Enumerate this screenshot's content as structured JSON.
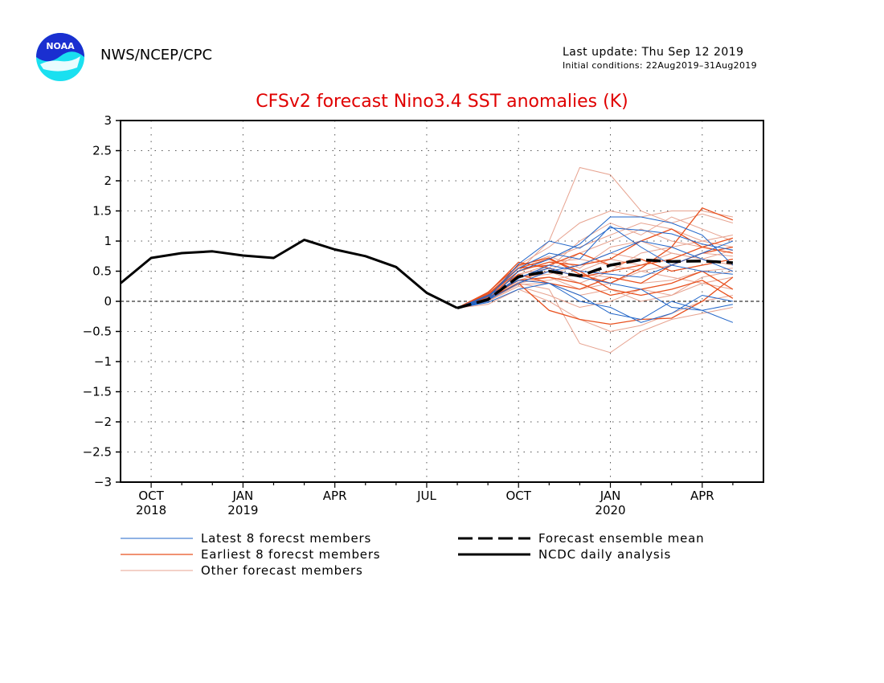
{
  "header": {
    "org": "NWS/NCEP/CPC",
    "last_update": "Last update: Thu Sep 12 2019",
    "initial_conditions": "Initial conditions: 22Aug2019–31Aug2019",
    "logo_text": "NOAA"
  },
  "chart_data": {
    "type": "line",
    "title": "CFSv2 forecast Nino3.4 SST anomalies (K)",
    "xlabel": "",
    "ylabel": "",
    "ylim": [
      -3,
      3
    ],
    "y_ticks": [
      "3",
      "2.5",
      "2",
      "1.5",
      "1",
      "0.5",
      "0",
      "−0.5",
      "−1",
      "−1.5",
      "−2",
      "−2.5",
      "−3"
    ],
    "x_ticks": [
      {
        "month": 0,
        "label": "OCT",
        "year": "2018"
      },
      {
        "month": 3,
        "label": "JAN",
        "year": "2019"
      },
      {
        "month": 6,
        "label": "APR",
        "year": ""
      },
      {
        "month": 9,
        "label": "JUL",
        "year": ""
      },
      {
        "month": 12,
        "label": "OCT",
        "year": ""
      },
      {
        "month": 15,
        "label": "JAN",
        "year": "2020"
      },
      {
        "month": 18,
        "label": "APR",
        "year": ""
      }
    ],
    "x_range_months_from_oct2018": [
      -1,
      20
    ],
    "grid": true,
    "zero_line": true,
    "colors": {
      "latest": "#1f64c8",
      "earliest": "#e8501e",
      "other": "#e7a390",
      "mean": "#000000",
      "analysis": "#000000"
    },
    "analysis": {
      "name": "NCDC daily analysis",
      "x": [
        -1,
        0,
        1,
        2,
        3,
        4,
        5,
        6,
        7,
        8,
        9,
        10
      ],
      "y": [
        0.3,
        0.72,
        0.8,
        0.83,
        0.76,
        0.72,
        1.02,
        0.86,
        0.75,
        0.57,
        0.14,
        -0.11
      ]
    },
    "ensemble_mean": {
      "name": "Forecast ensemble mean",
      "x": [
        10,
        11,
        12,
        13,
        14,
        15,
        16,
        17,
        18,
        19
      ],
      "y": [
        -0.11,
        0.03,
        0.41,
        0.5,
        0.42,
        0.6,
        0.69,
        0.66,
        0.67,
        0.64
      ]
    },
    "forecast_x": [
      10,
      11,
      12,
      13,
      14,
      15,
      16,
      17,
      18,
      19
    ],
    "latest_members": {
      "name": "Latest 8 forecst members",
      "y": [
        [
          -0.11,
          0.05,
          0.62,
          1.0,
          0.88,
          1.22,
          1.18,
          1.12,
          0.95,
          0.85
        ],
        [
          -0.11,
          0.0,
          0.5,
          0.7,
          0.95,
          1.4,
          1.4,
          1.3,
          1.1,
          0.6
        ],
        [
          -0.11,
          0.1,
          0.35,
          0.3,
          0.1,
          -0.2,
          -0.3,
          0.0,
          -0.15,
          -0.35
        ],
        [
          -0.11,
          0.05,
          0.4,
          0.55,
          0.4,
          0.3,
          0.2,
          -0.1,
          -0.15,
          -0.05
        ],
        [
          -0.11,
          0.02,
          0.3,
          0.5,
          0.6,
          0.8,
          1.0,
          0.9,
          0.7,
          0.5
        ],
        [
          -0.11,
          -0.02,
          0.2,
          0.3,
          0.0,
          -0.1,
          -0.35,
          -0.2,
          0.1,
          0.0
        ],
        [
          -0.11,
          0.08,
          0.55,
          0.8,
          0.7,
          1.25,
          0.9,
          0.6,
          0.8,
          1.0
        ],
        [
          -0.11,
          0.03,
          0.38,
          0.6,
          0.5,
          0.45,
          0.4,
          0.6,
          0.5,
          0.45
        ]
      ]
    },
    "earliest_members": {
      "name": "Earliest 8 forecst members",
      "y": [
        [
          -0.11,
          0.15,
          0.6,
          0.72,
          0.45,
          0.3,
          0.55,
          0.9,
          1.55,
          1.35
        ],
        [
          -0.11,
          0.1,
          0.55,
          0.7,
          0.5,
          0.2,
          0.1,
          0.2,
          0.35,
          0.05
        ],
        [
          -0.11,
          0.05,
          0.3,
          -0.15,
          -0.3,
          -0.38,
          -0.3,
          -0.28,
          0.0,
          0.4
        ],
        [
          -0.11,
          0.1,
          0.5,
          0.65,
          0.6,
          0.7,
          1.0,
          1.2,
          0.9,
          1.05
        ],
        [
          -0.11,
          0.08,
          0.45,
          0.3,
          0.2,
          0.4,
          0.3,
          0.6,
          0.8,
          0.9
        ],
        [
          -0.11,
          0.12,
          0.55,
          0.6,
          0.8,
          0.6,
          0.7,
          0.5,
          0.6,
          0.7
        ],
        [
          -0.11,
          0.06,
          0.35,
          0.4,
          0.3,
          0.1,
          0.2,
          0.3,
          0.5,
          0.2
        ],
        [
          -0.11,
          0.14,
          0.65,
          0.55,
          0.4,
          0.5,
          0.6,
          0.7,
          0.9,
          0.8
        ]
      ]
    },
    "other_members": {
      "name": "Other forecast members",
      "y": [
        [
          -0.11,
          0.05,
          0.5,
          1.0,
          2.22,
          2.1,
          1.5,
          1.3,
          1.45,
          1.3
        ],
        [
          -0.11,
          0.0,
          0.3,
          0.2,
          -0.7,
          -0.85,
          -0.5,
          -0.3,
          -0.2,
          -0.1
        ],
        [
          -0.11,
          0.1,
          0.6,
          0.9,
          1.3,
          1.5,
          1.4,
          1.5,
          1.5,
          1.4
        ],
        [
          -0.11,
          0.03,
          0.4,
          0.5,
          0.8,
          1.0,
          1.2,
          1.0,
          0.9,
          0.8
        ],
        [
          -0.11,
          -0.05,
          0.2,
          0.0,
          -0.3,
          -0.5,
          -0.4,
          -0.2,
          0.0,
          0.1
        ],
        [
          -0.11,
          0.08,
          0.45,
          0.6,
          0.5,
          0.7,
          0.6,
          0.8,
          0.7,
          0.6
        ],
        [
          -0.11,
          0.02,
          0.3,
          0.4,
          0.2,
          0.3,
          0.5,
          0.4,
          0.3,
          0.2
        ],
        [
          -0.11,
          0.12,
          0.55,
          0.7,
          0.9,
          1.1,
          1.3,
          1.2,
          1.0,
          1.1
        ],
        [
          -0.11,
          0.0,
          0.25,
          0.1,
          -0.1,
          0.0,
          0.2,
          0.1,
          0.4,
          0.5
        ],
        [
          -0.11,
          0.06,
          0.4,
          0.45,
          0.6,
          0.8,
          0.7,
          0.5,
          0.6,
          0.7
        ],
        [
          -0.11,
          0.04,
          0.35,
          0.5,
          0.3,
          0.5,
          0.8,
          0.9,
          1.0,
          0.9
        ],
        [
          -0.11,
          0.09,
          0.5,
          0.65,
          0.7,
          0.6,
          0.5,
          0.6,
          0.8,
          0.75
        ],
        [
          -0.11,
          0.01,
          0.28,
          0.3,
          0.1,
          0.2,
          0.0,
          0.1,
          0.3,
          0.4
        ],
        [
          -0.11,
          0.07,
          0.45,
          0.55,
          1.0,
          1.3,
          1.1,
          1.4,
          1.2,
          1.0
        ],
        [
          -0.11,
          0.03,
          0.32,
          0.35,
          0.45,
          0.4,
          0.3,
          0.35,
          0.5,
          0.55
        ],
        [
          -0.11,
          0.11,
          0.58,
          0.75,
          0.55,
          0.9,
          1.0,
          0.8,
          0.7,
          0.85
        ]
      ]
    },
    "legend": {
      "placement": "bottom",
      "entries": [
        {
          "label": "Latest 8 forecst members",
          "style": "latest"
        },
        {
          "label": "Earliest 8 forecst members",
          "style": "earliest"
        },
        {
          "label": "Other forecast members",
          "style": "other"
        },
        {
          "label": "Forecast ensemble mean",
          "style": "mean"
        },
        {
          "label": "NCDC daily analysis",
          "style": "analysis"
        }
      ]
    }
  }
}
